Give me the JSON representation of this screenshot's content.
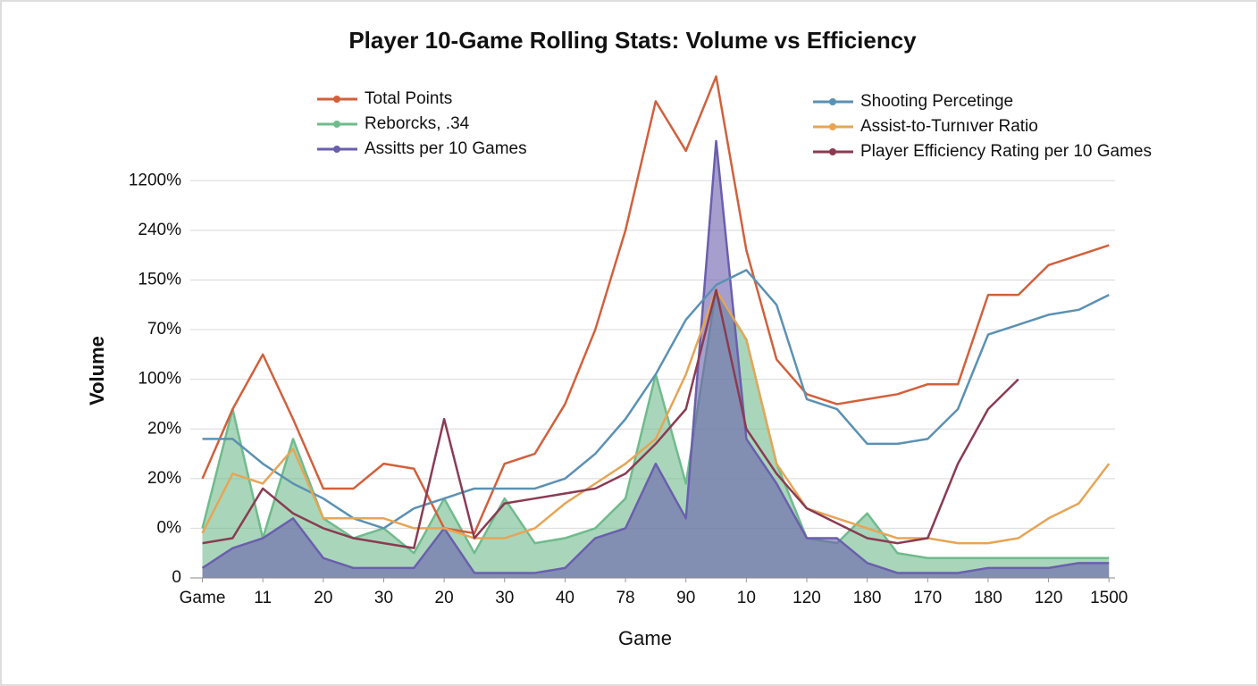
{
  "chart_data": {
    "type": "line",
    "title": "Player 10-Game Rolling Stats: Volume vs Efficiency",
    "x_label": "Game",
    "y_label": "Volume",
    "x": [
      0,
      0.5,
      1,
      1.5,
      2,
      2.5,
      3,
      3.5,
      4,
      4.5,
      5,
      5.5,
      6,
      6.5,
      7,
      7.5,
      8,
      8.5,
      9,
      9.5,
      10,
      10.5,
      11,
      11.5,
      12,
      12.5,
      13,
      13.5,
      14,
      14.5,
      15
    ],
    "xlim": [
      -0.2,
      15.1
    ],
    "xticks": [
      {
        "value": 0,
        "label": "Game"
      },
      {
        "value": 1,
        "label": "11"
      },
      {
        "value": 2,
        "label": "20"
      },
      {
        "value": 3,
        "label": "30"
      },
      {
        "value": 4,
        "label": "20"
      },
      {
        "value": 5,
        "label": "30"
      },
      {
        "value": 6,
        "label": "40"
      },
      {
        "value": 7,
        "label": "78"
      },
      {
        "value": 8,
        "label": "90"
      },
      {
        "value": 9,
        "label": "10"
      },
      {
        "value": 10,
        "label": "120"
      },
      {
        "value": 11,
        "label": "180"
      },
      {
        "value": 12,
        "label": "170"
      },
      {
        "value": 13,
        "label": "180"
      },
      {
        "value": 14,
        "label": "120"
      },
      {
        "value": 15,
        "label": "1500"
      }
    ],
    "ylim": [
      0,
      10.2
    ],
    "yticks": [
      0,
      {
        "value": 1,
        "label": "0%"
      },
      {
        "value": 2,
        "label": "20%"
      },
      {
        "value": 3,
        "label": "20%"
      },
      {
        "value": 4,
        "label": "100%"
      },
      {
        "value": 5,
        "label": "70%"
      },
      {
        "value": 6,
        "label": "150%"
      },
      {
        "value": 7,
        "label": "240%"
      },
      {
        "value": 8,
        "label": "1200%"
      }
    ],
    "grid": true,
    "series": [
      {
        "name": "Total Points",
        "color": "#d2603c",
        "style": "line",
        "values": [
          2.0,
          3.4,
          4.5,
          3.2,
          1.8,
          1.8,
          2.3,
          2.2,
          1.0,
          0.9,
          2.3,
          2.5,
          3.5,
          5.0,
          7.0,
          9.6,
          8.6,
          10.1,
          6.6,
          4.4,
          3.7,
          3.5,
          3.6,
          3.7,
          3.9,
          3.9,
          5.7,
          5.7,
          6.3,
          6.5,
          6.7
        ]
      },
      {
        "name": "Reborcks, .34",
        "color": "#6fbb8c",
        "style": "area",
        "values": [
          1.0,
          3.4,
          0.8,
          2.8,
          1.2,
          0.8,
          1.0,
          0.5,
          1.6,
          0.5,
          1.6,
          0.7,
          0.8,
          1.0,
          1.6,
          4.1,
          1.9,
          5.8,
          4.8,
          2.3,
          0.8,
          0.7,
          1.3,
          0.5,
          0.4,
          0.4,
          0.4,
          0.4,
          0.4,
          0.4,
          0.4
        ]
      },
      {
        "name": "Assitts per 10 Games",
        "color": "#6a5fae",
        "style": "area",
        "values": [
          0.2,
          0.6,
          0.8,
          1.2,
          0.4,
          0.2,
          0.2,
          0.2,
          1.0,
          0.1,
          0.1,
          0.1,
          0.2,
          0.8,
          1.0,
          2.3,
          1.2,
          8.8,
          2.8,
          1.9,
          0.8,
          0.8,
          0.3,
          0.1,
          0.1,
          0.1,
          0.2,
          0.2,
          0.2,
          0.3,
          0.3
        ]
      },
      {
        "name": "Shooting Percetinge",
        "color": "#5b91b3",
        "style": "line",
        "values": [
          2.8,
          2.8,
          2.3,
          1.9,
          1.6,
          1.2,
          1.0,
          1.4,
          1.6,
          1.8,
          1.8,
          1.8,
          2.0,
          2.5,
          3.2,
          4.1,
          5.2,
          5.9,
          6.2,
          5.5,
          3.6,
          3.4,
          2.7,
          2.7,
          2.8,
          3.4,
          4.9,
          5.1,
          5.3,
          5.4,
          5.7
        ]
      },
      {
        "name": "Assist-to-Turnıver Ratio",
        "color": "#e6a556",
        "style": "line",
        "values": [
          0.9,
          2.1,
          1.9,
          2.6,
          1.2,
          1.2,
          1.2,
          1.0,
          1.0,
          0.8,
          0.8,
          1.0,
          1.5,
          1.9,
          2.3,
          2.8,
          4.1,
          5.8,
          4.8,
          2.3,
          1.4,
          1.2,
          1.0,
          0.8,
          0.8,
          0.7,
          0.7,
          0.8,
          1.2,
          1.5,
          2.3
        ]
      },
      {
        "name": "Player Efficiency Rating per 10 Games",
        "color": "#8a3b52",
        "style": "line",
        "values": [
          0.7,
          0.8,
          1.8,
          1.3,
          1.0,
          0.8,
          0.7,
          0.6,
          3.2,
          0.8,
          1.5,
          1.6,
          1.7,
          1.8,
          2.1,
          2.7,
          3.4,
          5.8,
          3.0,
          2.1,
          1.4,
          1.1,
          0.8,
          0.7,
          0.8,
          2.3,
          3.4,
          4.0,
          null,
          null,
          null
        ]
      }
    ]
  }
}
